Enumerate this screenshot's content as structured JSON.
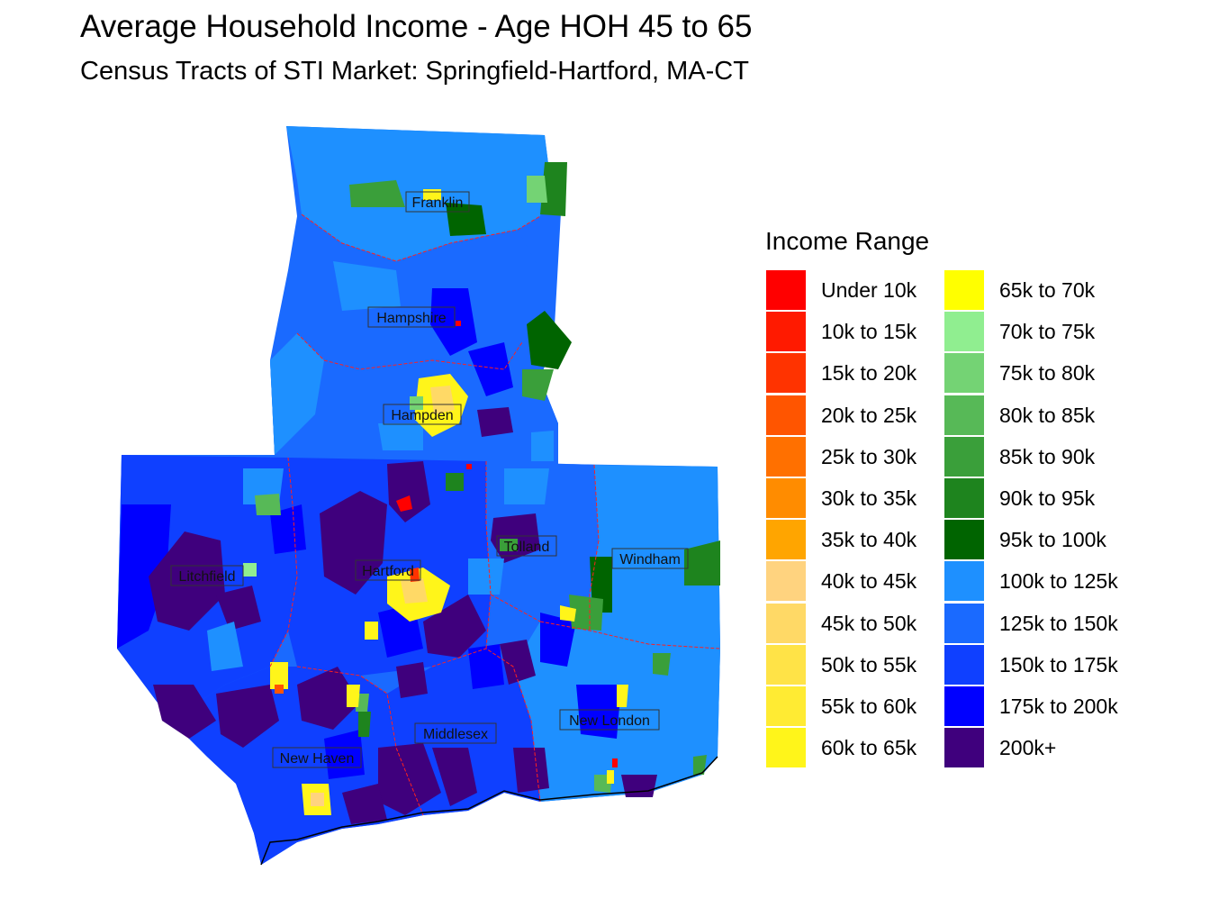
{
  "title": "Average Household Income - Age HOH 45 to 65",
  "subtitle": "Census Tracts of STI Market: Springfield-Hartford, MA-CT",
  "legend": {
    "title": "Income Range",
    "items": [
      {
        "label": "Under 10k",
        "color": "#FF0000"
      },
      {
        "label": "10k to 15k",
        "color": "#FF1A00"
      },
      {
        "label": "15k to 20k",
        "color": "#FF3300"
      },
      {
        "label": "20k to 25k",
        "color": "#FF5500"
      },
      {
        "label": "25k to 30k",
        "color": "#FF7000"
      },
      {
        "label": "30k to 35k",
        "color": "#FF8C00"
      },
      {
        "label": "35k to 40k",
        "color": "#FFA500"
      },
      {
        "label": "40k to 45k",
        "color": "#FFD37F"
      },
      {
        "label": "45k to 50k",
        "color": "#FFD966"
      },
      {
        "label": "50k to 55k",
        "color": "#FFE347"
      },
      {
        "label": "55k to 60k",
        "color": "#FFEB33"
      },
      {
        "label": "60k to 65k",
        "color": "#FFF51A"
      },
      {
        "label": "65k to 70k",
        "color": "#FFFF00"
      },
      {
        "label": "70k to 75k",
        "color": "#90EE90"
      },
      {
        "label": "75k to 80k",
        "color": "#74D374"
      },
      {
        "label": "80k to 85k",
        "color": "#57B957"
      },
      {
        "label": "85k to 90k",
        "color": "#3A9F3A"
      },
      {
        "label": "90k to 95k",
        "color": "#1E841E"
      },
      {
        "label": "95k to 100k",
        "color": "#006400"
      },
      {
        "label": "100k to 125k",
        "color": "#1E90FF"
      },
      {
        "label": "125k to 150k",
        "color": "#1A6AFF"
      },
      {
        "label": "150k to 175k",
        "color": "#0F40FF"
      },
      {
        "label": "175k to 200k",
        "color": "#0000FF"
      },
      {
        "label": "200k+",
        "color": "#3F007D"
      }
    ]
  },
  "counties": [
    {
      "name": "Franklin",
      "level": "100k to 125k"
    },
    {
      "name": "Hampshire",
      "level": "125k to 150k"
    },
    {
      "name": "Hampden",
      "level": "125k to 150k"
    },
    {
      "name": "Litchfield",
      "level": "150k to 175k"
    },
    {
      "name": "Hartford",
      "level": "150k to 175k"
    },
    {
      "name": "Tolland",
      "level": "125k to 150k"
    },
    {
      "name": "Windham",
      "level": "100k to 125k"
    },
    {
      "name": "New London",
      "level": "100k to 125k"
    },
    {
      "name": "Middlesex",
      "level": "150k to 175k"
    },
    {
      "name": "New Haven",
      "level": "150k to 175k"
    }
  ]
}
